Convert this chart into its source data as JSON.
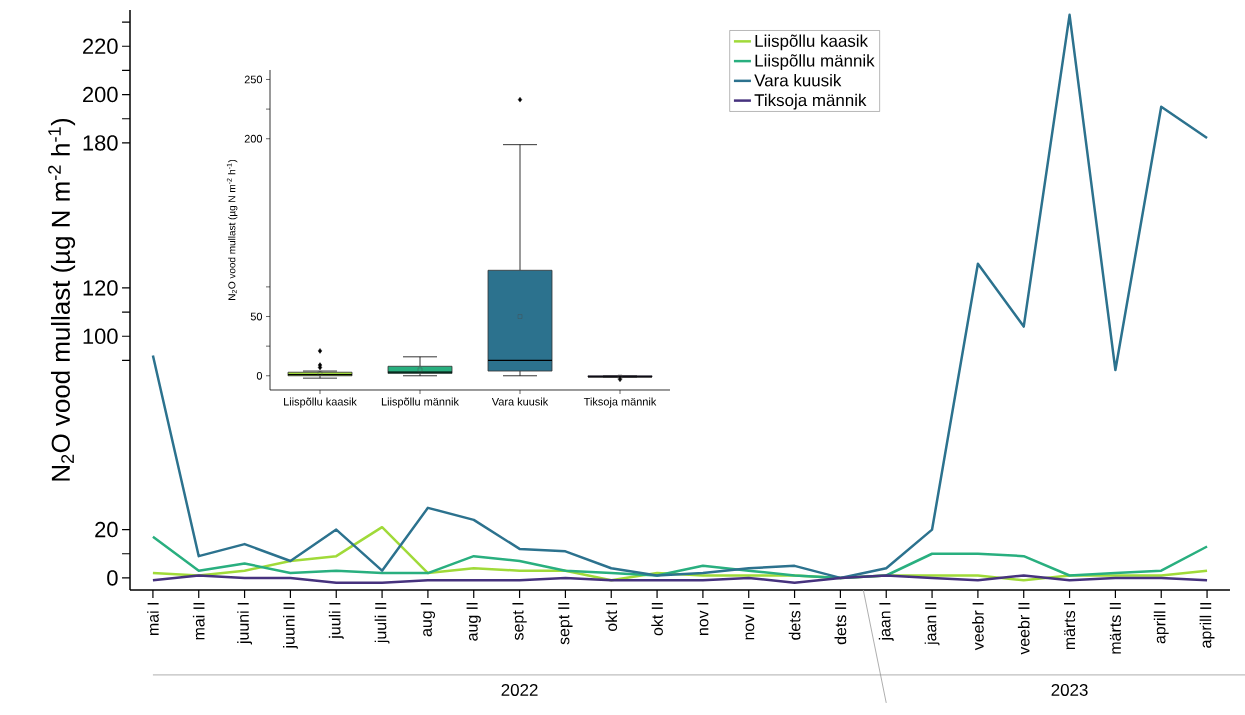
{
  "chart_data": [
    {
      "type": "line",
      "ylabel": "N$_{2}$O vood mullast (µg N m$^{-2}$ h$^{-1}$)",
      "categories": [
        "mai I",
        "mai II",
        "juuni I",
        "juuni II",
        "juuli I",
        "juuli II",
        "aug I",
        "aug II",
        "sept I",
        "sept II",
        "okt I",
        "okt II",
        "nov I",
        "nov II",
        "dets I",
        "dets II",
        "jaan I",
        "jaan II",
        "veebr I",
        "veebr II",
        "märts I",
        "märts II",
        "aprill I",
        "aprill II"
      ],
      "series": [
        {
          "name": "Liispõllu kaasik",
          "color": "#a0da39",
          "values": [
            2,
            1,
            3,
            7,
            9,
            21,
            2,
            4,
            3,
            3,
            -1,
            2,
            1,
            1,
            1,
            0,
            1,
            1,
            1,
            -1,
            1,
            1,
            1,
            3
          ]
        },
        {
          "name": "Liispõllu männik",
          "color": "#29af7f",
          "values": [
            17,
            3,
            6,
            2,
            3,
            2,
            2,
            9,
            7,
            3,
            2,
            1,
            5,
            3,
            1,
            0,
            1,
            10,
            10,
            9,
            1,
            2,
            3,
            13
          ]
        },
        {
          "name": "Vara kuusik",
          "color": "#2c728e",
          "values": [
            92,
            9,
            14,
            7,
            20,
            3,
            29,
            24,
            12,
            11,
            4,
            1,
            2,
            4,
            5,
            0,
            4,
            20,
            130,
            104,
            233,
            86,
            195,
            182
          ]
        },
        {
          "name": "Tiksoja männik",
          "color": "#46327e",
          "values": [
            -1,
            1,
            0,
            0,
            -2,
            -2,
            -1,
            -1,
            -1,
            0,
            -1,
            -1,
            -1,
            0,
            -2,
            0,
            1,
            0,
            -1,
            1,
            -1,
            0,
            0,
            -1
          ]
        }
      ],
      "ylim": [
        -5,
        235
      ],
      "yticks": [
        0,
        {
          "value": 10,
          "label": null
        },
        20,
        {
          "value": 90,
          "label": null
        },
        100,
        {
          "value": 110,
          "label": null
        },
        120,
        180,
        {
          "value": 190,
          "label": null
        },
        200,
        {
          "value": 210,
          "label": null
        },
        220,
        {
          "value": 230,
          "label": null
        }
      ],
      "legend": "top",
      "annotations": [
        "2022",
        "2023"
      ]
    },
    {
      "type": "box",
      "ylabel": "N$_{2}$O vood mullast (µg N m$^{-2}$ h$^{-1}$)",
      "categories": [
        "Liispõllu kaasik",
        "Liispõllu männik",
        "Vara kuusik",
        "Tiksoja männik"
      ],
      "colors": [
        "#a0da39",
        "#29af7f",
        "#2c728e",
        "#46327e"
      ],
      "boxes": [
        {
          "low": -2,
          "q1": 0,
          "median": 1,
          "q3": 3,
          "high": 4,
          "mean": 2,
          "outliers": [
            21,
            9,
            7
          ]
        },
        {
          "low": 0,
          "q1": 2,
          "median": 3,
          "q3": 8,
          "high": 16,
          "mean": 5
        },
        {
          "low": 0,
          "q1": 4,
          "median": 13,
          "q3": 89,
          "high": 195,
          "mean": 50,
          "outliers": [
            233
          ]
        },
        {
          "low": -1,
          "q1": -1,
          "median": -1,
          "q3": 0,
          "high": 0,
          "mean": -1,
          "outliers": [
            -3
          ]
        }
      ],
      "ylim": [
        -12,
        258
      ],
      "yticks": [
        0,
        {
          "value": 25,
          "label": null
        },
        50,
        {
          "value": 75,
          "label": null
        },
        200,
        {
          "value": 225,
          "label": null
        },
        250
      ]
    }
  ]
}
